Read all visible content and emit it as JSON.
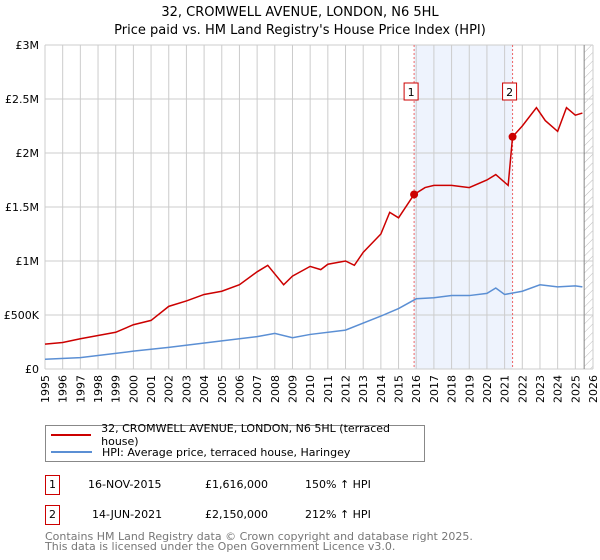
{
  "title": [
    "32, CROMWELL AVENUE, LONDON, N6 5HL",
    "Price paid vs. HM Land Registry's House Price Index (HPI)"
  ],
  "chart_data": {
    "type": "line",
    "title": "32, CROMWELL AVENUE, LONDON, N6 5HL - Price paid vs. HM Land Registry's House Price Index (HPI)",
    "xlim": [
      1995,
      2026
    ],
    "ylim": [
      0,
      3000000
    ],
    "x_ticks": [
      "1995",
      "1996",
      "1997",
      "1998",
      "1999",
      "2000",
      "2001",
      "2002",
      "2003",
      "2004",
      "2005",
      "2006",
      "2007",
      "2008",
      "2009",
      "2010",
      "2011",
      "2012",
      "2013",
      "2014",
      "2015",
      "2016",
      "2017",
      "2018",
      "2019",
      "2020",
      "2021",
      "2022",
      "2023",
      "2024",
      "2025",
      "2026"
    ],
    "y_ticks": [
      {
        "v": 0,
        "label": "£0"
      },
      {
        "v": 500000,
        "label": "£500K"
      },
      {
        "v": 1000000,
        "label": "£1M"
      },
      {
        "v": 1500000,
        "label": "£1.5M"
      },
      {
        "v": 2000000,
        "label": "£2M"
      },
      {
        "v": 2500000,
        "label": "£2.5M"
      },
      {
        "v": 3000000,
        "label": "£3M"
      }
    ],
    "grid": true,
    "series": [
      {
        "name": "32, CROMWELL AVENUE, LONDON, N6 5HL (terraced house)",
        "color": "#cc0000",
        "x": [
          1995,
          1996,
          1997,
          1998,
          1999,
          2000,
          2001,
          2002,
          2003,
          2004,
          2005,
          2006,
          2007,
          2007.6,
          2008.5,
          2009,
          2010,
          2010.6,
          2011,
          2012,
          2012.5,
          2013,
          2014,
          2014.5,
          2015,
          2015.88,
          2016.5,
          2017,
          2018,
          2019,
          2020,
          2020.5,
          2021.2,
          2021.45,
          2022,
          2022.8,
          2023.3,
          2024,
          2024.5,
          2025,
          2025.4
        ],
        "y": [
          230000,
          245000,
          280000,
          310000,
          340000,
          410000,
          450000,
          580000,
          630000,
          690000,
          720000,
          780000,
          900000,
          960000,
          780000,
          860000,
          950000,
          920000,
          970000,
          1000000,
          960000,
          1080000,
          1250000,
          1450000,
          1400000,
          1616000,
          1680000,
          1700000,
          1700000,
          1680000,
          1750000,
          1800000,
          1700000,
          2150000,
          2250000,
          2420000,
          2300000,
          2200000,
          2420000,
          2350000,
          2370000
        ]
      },
      {
        "name": "HPI: Average price, terraced house, Haringey",
        "color": "#5b8fd4",
        "x": [
          1995,
          1997,
          2000,
          2002,
          2005,
          2007,
          2008,
          2009,
          2010,
          2012,
          2014,
          2015,
          2016,
          2017,
          2018,
          2019,
          2020,
          2020.5,
          2021,
          2022,
          2023,
          2024,
          2025,
          2025.4
        ],
        "y": [
          90000,
          105000,
          165000,
          200000,
          260000,
          300000,
          330000,
          290000,
          320000,
          360000,
          490000,
          560000,
          650000,
          660000,
          680000,
          680000,
          700000,
          750000,
          690000,
          720000,
          780000,
          760000,
          770000,
          760000
        ]
      }
    ],
    "annotations": [
      {
        "label": "1",
        "x": 2015.88,
        "y": 1616000
      },
      {
        "label": "2",
        "x": 2021.45,
        "y": 2150000
      }
    ],
    "shaded_range": [
      2015.88,
      2021.45
    ],
    "forecast_hatch_from": 2025.5
  },
  "legend": {
    "items": [
      "32, CROMWELL AVENUE, LONDON, N6 5HL (terraced house)",
      "HPI: Average price, terraced house, Haringey"
    ]
  },
  "table": [
    {
      "num": "1",
      "date": "16-NOV-2015",
      "price": "£1,616,000",
      "hpi": "150% ↑ HPI"
    },
    {
      "num": "2",
      "date": "14-JUN-2021",
      "price": "£2,150,000",
      "hpi": "212% ↑ HPI"
    }
  ],
  "footer": [
    "Contains HM Land Registry data © Crown copyright and database right 2025.",
    "This data is licensed under the Open Government Licence v3.0."
  ]
}
